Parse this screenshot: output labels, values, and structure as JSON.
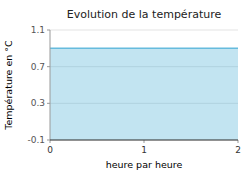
{
  "chart_data": {
    "type": "area",
    "title": "Evolution de la température",
    "x_label": "heure par heure",
    "y_label": "Température en °C",
    "x": [
      0,
      2
    ],
    "series": [
      {
        "color": "#66bbdd",
        "values": [
          0.9,
          0.9
        ]
      }
    ],
    "xlim": [
      0,
      2
    ],
    "xticks": [
      0,
      1,
      2
    ],
    "ylim": [
      -0.1,
      1.1
    ],
    "yticks": [
      -0.1,
      0.3,
      0.7,
      1.1
    ],
    "grid": true
  }
}
